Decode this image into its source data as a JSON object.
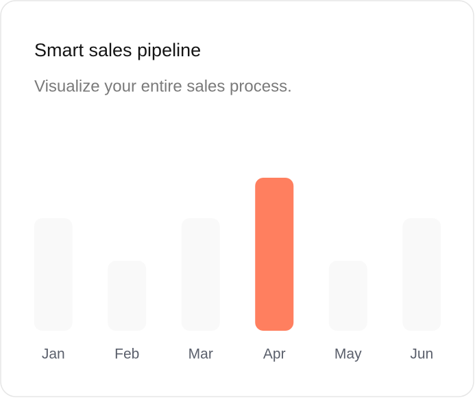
{
  "chart_data": {
    "type": "bar",
    "title": "Smart sales pipeline",
    "subtitle": "Visualize your entire sales process.",
    "categories": [
      "Jan",
      "Feb",
      "Mar",
      "Apr",
      "May",
      "Jun"
    ],
    "values": [
      164,
      102,
      164,
      223,
      102,
      164
    ],
    "colors": [
      "#f9f9f9",
      "#f9f9f9",
      "#f9f9f9",
      "#ff7f5f",
      "#f9f9f9",
      "#f9f9f9"
    ],
    "ylim": [
      0,
      223
    ]
  }
}
